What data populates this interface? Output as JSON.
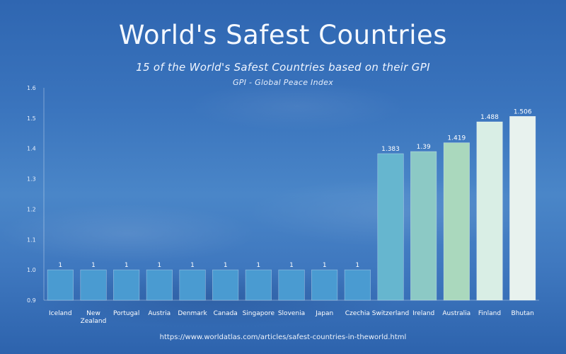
{
  "title": "World's Safest Countries",
  "subtitle": "15 of the World's Safest Countries based on their GPI",
  "note": "GPI - Global Peace Index",
  "source": "https://www.worldatlas.com/articles/safest-countries-in-theworld.html",
  "colors": {
    "background": "#3a74bd",
    "bar_default": "#4a9bd1",
    "bar_gradient": [
      "#66b6cf",
      "#8cc9c5",
      "#aad8bd",
      "#d9eee5",
      "#e8f2ee"
    ]
  },
  "chart_data": {
    "type": "bar",
    "title": "World's Safest Countries",
    "subtitle": "15 of the World's Safest Countries based on their GPI",
    "xlabel": "",
    "ylabel": "",
    "ylim": [
      0.9,
      1.6
    ],
    "yticks": [
      "0.9",
      "1.0",
      "1.1",
      "1.2",
      "1.3",
      "1.4",
      "1.5",
      "1.6"
    ],
    "grid": false,
    "categories": [
      [
        "Iceland"
      ],
      [
        "New",
        "Zealand"
      ],
      [
        "Portugal"
      ],
      [
        "Austria"
      ],
      [
        "Denmark"
      ],
      [
        "Canada"
      ],
      [
        "Singapore"
      ],
      [
        "Slovenia"
      ],
      [
        "Japan"
      ],
      [
        "Czechia"
      ],
      [
        "Switzerland"
      ],
      [
        "Ireland"
      ],
      [
        "Australia"
      ],
      [
        "Finland"
      ],
      [
        "Bhutan"
      ]
    ],
    "values": [
      1,
      1,
      1,
      1,
      1,
      1,
      1,
      1,
      1,
      1,
      1.383,
      1.39,
      1.419,
      1.488,
      1.506
    ],
    "value_labels": [
      "1",
      "1",
      "1",
      "1",
      "1",
      "1",
      "1",
      "1",
      "1",
      "1",
      "1.383",
      "1.39",
      "1.419",
      "1.488",
      "1.506"
    ]
  }
}
